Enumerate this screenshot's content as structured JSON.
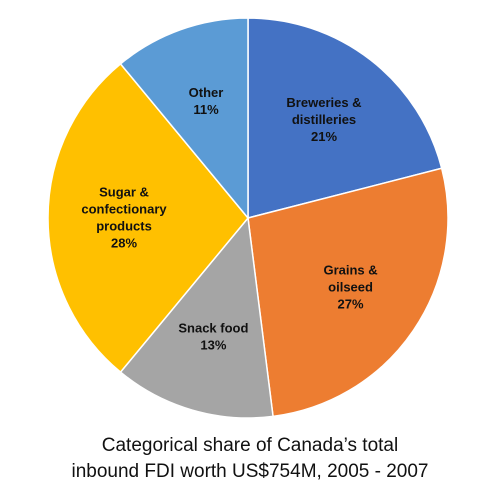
{
  "chart_data": {
    "type": "pie",
    "title": "Categorical share of Canada’s total inbound FDI worth US$754M, 2005 - 2007",
    "title_lines": [
      "Categorical share of Canada’s total",
      "inbound FDI worth US$754M, 2005 - 2007"
    ],
    "unit": "%",
    "legend": "none",
    "slices": [
      {
        "label_lines": [
          "Breweries &",
          "distilleries"
        ],
        "value": 21,
        "value_label": "21%",
        "color": "#4472c4",
        "text_color": "#111111"
      },
      {
        "label_lines": [
          "Grains &",
          "oilseed"
        ],
        "value": 27,
        "value_label": "27%",
        "color": "#ed7d31",
        "text_color": "#111111"
      },
      {
        "label_lines": [
          "Snack food"
        ],
        "value": 13,
        "value_label": "13%",
        "color": "#a5a5a5",
        "text_color": "#111111"
      },
      {
        "label_lines": [
          "Sugar &",
          "confectionary",
          "products"
        ],
        "value": 28,
        "value_label": "28%",
        "color": "#ffc000",
        "text_color": "#111111"
      },
      {
        "label_lines": [
          "Other"
        ],
        "value": 11,
        "value_label": "11%",
        "color": "#5b9bd5",
        "text_color": "#111111"
      }
    ]
  }
}
